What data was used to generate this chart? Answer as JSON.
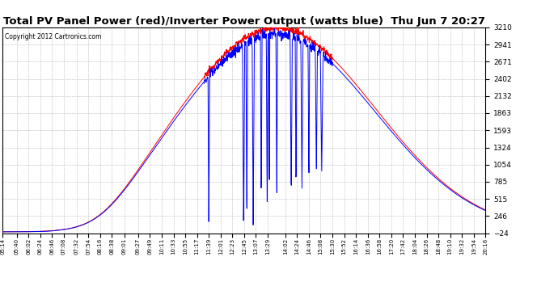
{
  "title": "Total PV Panel Power (red)/Inverter Power Output (watts blue)  Thu Jun 7 20:27",
  "copyright": "Copyright 2012 Cartronics.com",
  "yticks": [
    3210.1,
    2940.6,
    2671.2,
    2401.7,
    2132.2,
    1862.8,
    1593.3,
    1323.8,
    1054.4,
    784.9,
    515.4,
    246.0,
    -23.5
  ],
  "ymin": -23.5,
  "ymax": 3210.1,
  "background_color": "#ffffff",
  "grid_color": "#bbbbbb",
  "title_fontsize": 9.5,
  "red_color": "#ff0000",
  "blue_color": "#0000ff",
  "xtick_labels": [
    "05:14",
    "05:40",
    "06:02",
    "06:24",
    "06:46",
    "07:08",
    "07:32",
    "07:54",
    "08:16",
    "08:38",
    "09:01",
    "09:27",
    "09:49",
    "10:11",
    "10:33",
    "10:55",
    "11:17",
    "11:39",
    "12:01",
    "12:23",
    "12:45",
    "13:07",
    "13:29",
    "14:02",
    "14:24",
    "14:46",
    "15:08",
    "15:30",
    "15:52",
    "16:14",
    "16:36",
    "16:58",
    "17:20",
    "17:42",
    "18:04",
    "18:26",
    "18:48",
    "19:10",
    "19:32",
    "19:54",
    "20:16"
  ]
}
